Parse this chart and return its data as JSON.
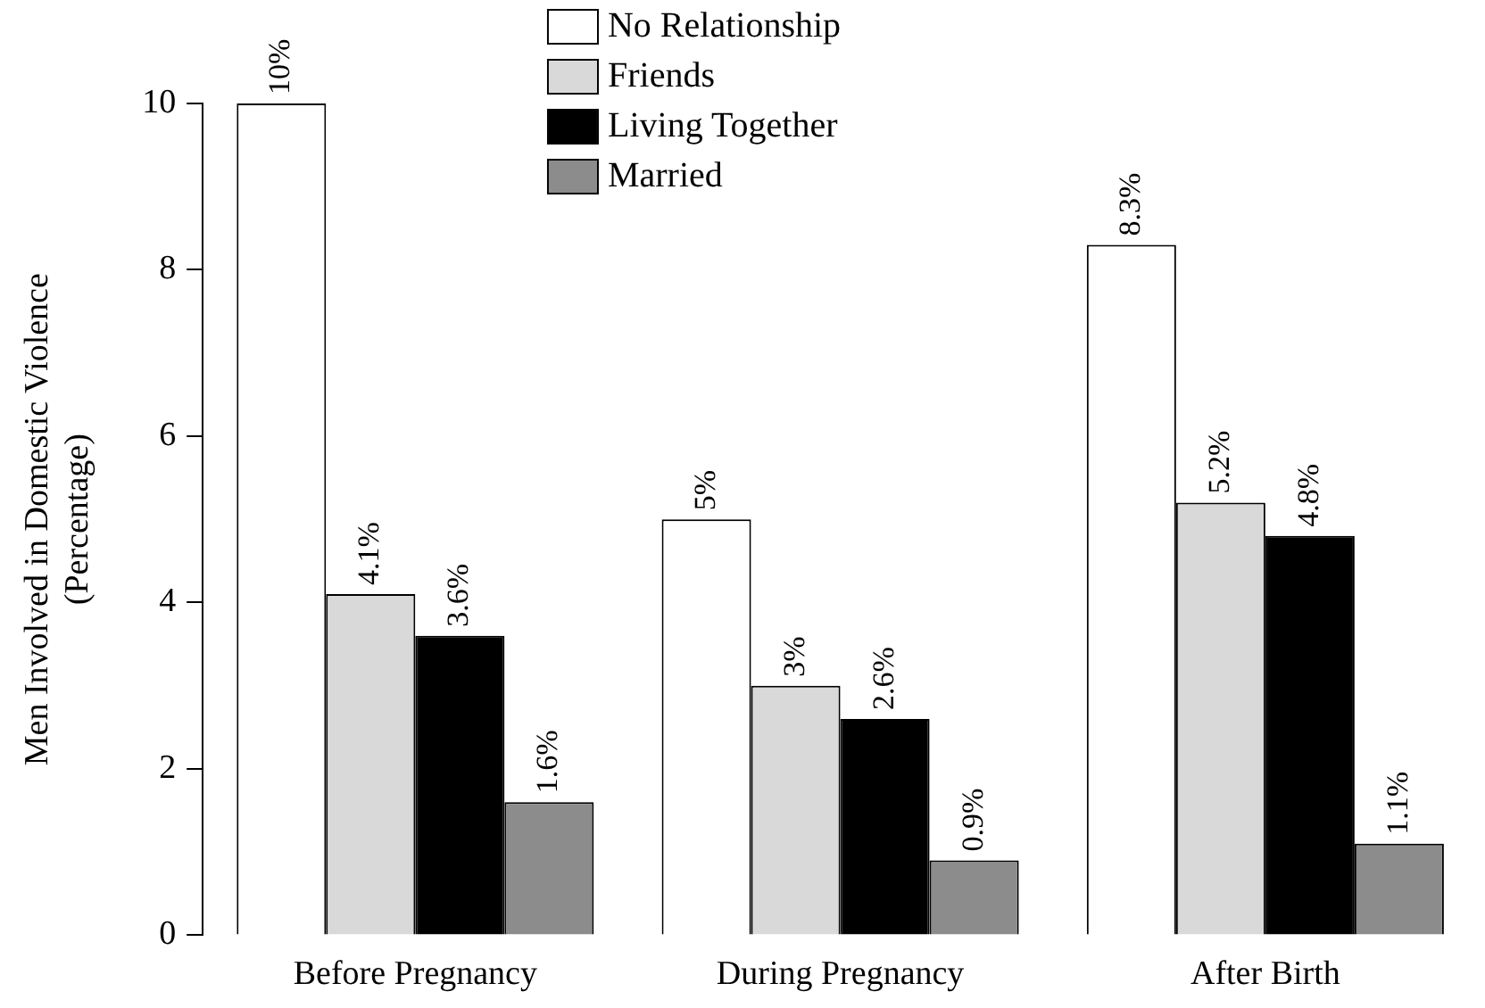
{
  "chart_data": {
    "type": "bar",
    "ylabel": "Men Involved in Domestic Violence\n(Percentage)",
    "categories": [
      "Before Pregnancy",
      "During Pregnancy",
      "After Birth"
    ],
    "series": [
      {
        "name": "No Relationship",
        "color": "#ffffff",
        "values": [
          10,
          5,
          8.3
        ],
        "value_labels": [
          "10%",
          "5%",
          "8.3%"
        ]
      },
      {
        "name": "Friends",
        "color": "#d9d9d9",
        "values": [
          4.1,
          3,
          5.2
        ],
        "value_labels": [
          "4.1%",
          "3%",
          "5.2%"
        ]
      },
      {
        "name": "Living Together",
        "color": "#000000",
        "values": [
          3.6,
          2.6,
          4.8
        ],
        "value_labels": [
          "3.6%",
          "2.6%",
          "4.8%"
        ]
      },
      {
        "name": "Married",
        "color": "#8c8c8c",
        "values": [
          1.6,
          0.9,
          1.1
        ],
        "value_labels": [
          "1.6%",
          "0.9%",
          "1.1%"
        ]
      }
    ],
    "ylim": [
      0,
      10
    ],
    "yticks": [
      0,
      2,
      4,
      6,
      8,
      10
    ],
    "grid": false,
    "legend": "top"
  }
}
